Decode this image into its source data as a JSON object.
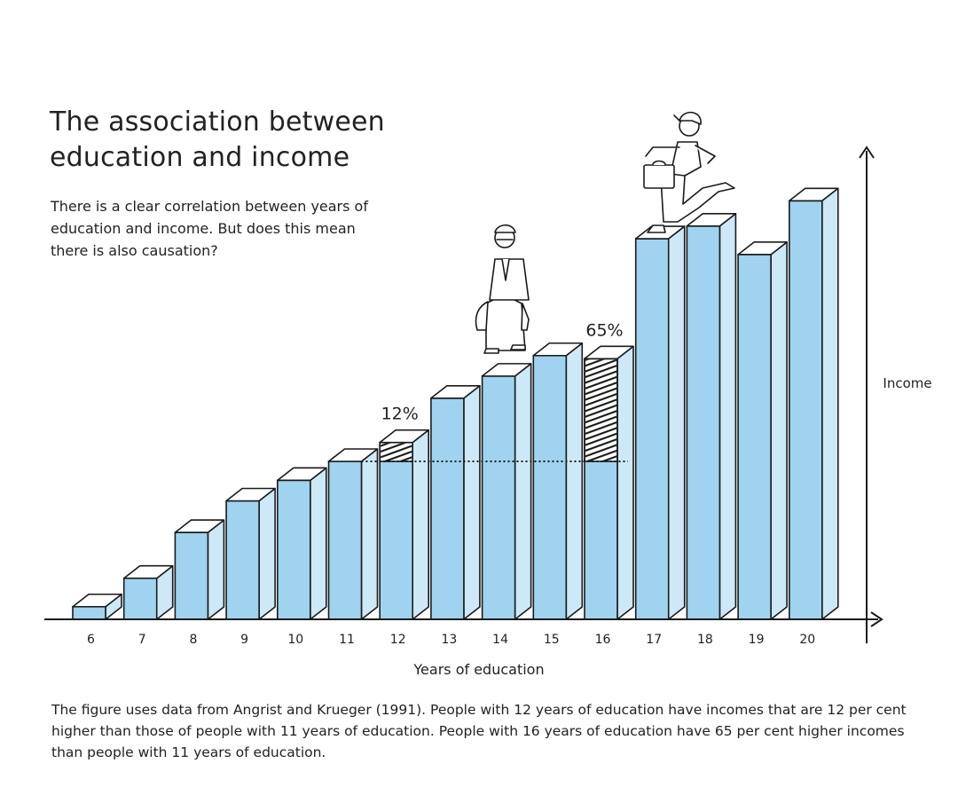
{
  "title": "The association between education and income",
  "subtitle": "There is a clear correlation between years of education and income. But does this mean there is also causation?",
  "caption": "The figure uses data from Angrist and Krueger (1991). People with 12 years of education have incomes that are 12 per cent higher than those of people with 11 years of education. People with 16 years of education have 65 per cent higher incomes than people with 11 years of education.",
  "chart_data": {
    "type": "bar",
    "xlabel": "Years of education",
    "ylabel": "Income",
    "categories": [
      "6",
      "7",
      "8",
      "9",
      "10",
      "11",
      "12",
      "13",
      "14",
      "15",
      "16",
      "17",
      "18",
      "19",
      "20"
    ],
    "values": [
      0.08,
      0.26,
      0.55,
      0.75,
      0.88,
      1.0,
      1.12,
      1.4,
      1.54,
      1.67,
      1.65,
      2.41,
      2.49,
      2.31,
      2.65
    ],
    "baseline_category": "11",
    "annotations": [
      {
        "category": "12",
        "label": "12%"
      },
      {
        "category": "16",
        "label": "65%"
      }
    ],
    "bar_color": "#9fd3ef",
    "bar_side_color": "#cde9f8",
    "bar_top_color": "#ffffff",
    "stroke_color": "#1a1a1a"
  }
}
